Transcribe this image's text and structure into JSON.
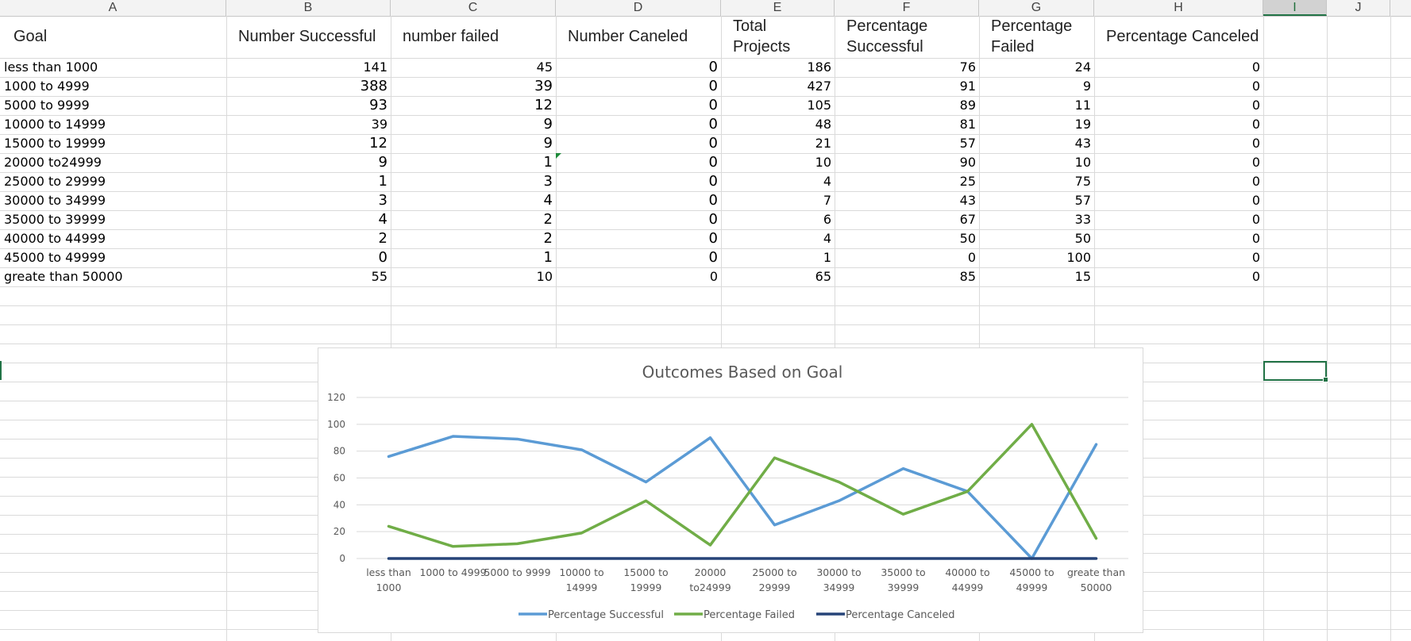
{
  "columns": [
    "A",
    "B",
    "C",
    "D",
    "E",
    "F",
    "G",
    "H",
    "I",
    "J"
  ],
  "selected_column": "I",
  "headers": {
    "a": "Goal",
    "b": "Number Successful",
    "c": "number failed",
    "d": "Number Caneled",
    "e1": "Total",
    "e2": "Projects",
    "f1": "Percentage",
    "f2": "Successful",
    "g1": "Percentage",
    "g2": "Failed",
    "h": "Percentage Canceled"
  },
  "rows": [
    {
      "goal": "less than 1000",
      "succ": "141",
      "fail": "45",
      "canc": "0",
      "total": "186",
      "pct_s": "76",
      "pct_f": "24",
      "pct_c": "0"
    },
    {
      "goal": "1000 to 4999",
      "succ": "388",
      "fail": "39",
      "canc": "0",
      "total": "427",
      "pct_s": "91",
      "pct_f": "9",
      "pct_c": "0"
    },
    {
      "goal": "5000 to 9999",
      "succ": "93",
      "fail": "12",
      "canc": "0",
      "total": "105",
      "pct_s": "89",
      "pct_f": "11",
      "pct_c": "0"
    },
    {
      "goal": "10000 to 14999",
      "succ": "39",
      "fail": "9",
      "canc": "0",
      "total": "48",
      "pct_s": "81",
      "pct_f": "19",
      "pct_c": "0"
    },
    {
      "goal": "15000 to 19999",
      "succ": "12",
      "fail": "9",
      "canc": "0",
      "total": "21",
      "pct_s": "57",
      "pct_f": "43",
      "pct_c": "0"
    },
    {
      "goal": "20000 to24999",
      "succ": "9",
      "fail": "1",
      "canc": "0",
      "total": "10",
      "pct_s": "90",
      "pct_f": "10",
      "pct_c": "0"
    },
    {
      "goal": "25000 to 29999",
      "succ": "1",
      "fail": "3",
      "canc": "0",
      "total": "4",
      "pct_s": "25",
      "pct_f": "75",
      "pct_c": "0"
    },
    {
      "goal": "30000 to 34999",
      "succ": "3",
      "fail": "4",
      "canc": "0",
      "total": "7",
      "pct_s": "43",
      "pct_f": "57",
      "pct_c": "0"
    },
    {
      "goal": "35000 to 39999",
      "succ": "4",
      "fail": "2",
      "canc": "0",
      "total": "6",
      "pct_s": "67",
      "pct_f": "33",
      "pct_c": "0"
    },
    {
      "goal": "40000 to 44999",
      "succ": "2",
      "fail": "2",
      "canc": "0",
      "total": "4",
      "pct_s": "50",
      "pct_f": "50",
      "pct_c": "0"
    },
    {
      "goal": "45000 to 49999",
      "succ": "0",
      "fail": "1",
      "canc": "0",
      "total": "1",
      "pct_s": "0",
      "pct_f": "100",
      "pct_c": "0"
    },
    {
      "goal": "greate than 50000",
      "succ": "55",
      "fail": "10",
      "canc": "0",
      "total": "65",
      "pct_s": "85",
      "pct_f": "15",
      "pct_c": "0"
    }
  ],
  "chart_data": {
    "type": "line",
    "title": "Outcomes Based on Goal",
    "categories": [
      "less than 1000",
      "1000 to 4999",
      "5000 to 9999",
      "10000 to 14999",
      "15000 to 19999",
      "20000 to24999",
      "25000 to 29999",
      "30000 to 34999",
      "35000 to 39999",
      "40000 to 44999",
      "45000 to 49999",
      "greate than 50000"
    ],
    "category_labels": [
      [
        "less than",
        "1000"
      ],
      [
        "1000 to 4999"
      ],
      [
        "5000 to 9999"
      ],
      [
        "10000 to",
        "14999"
      ],
      [
        "15000 to",
        "19999"
      ],
      [
        "20000",
        "to24999"
      ],
      [
        "25000 to",
        "29999"
      ],
      [
        "30000 to",
        "34999"
      ],
      [
        "35000 to",
        "39999"
      ],
      [
        "40000 to",
        "44999"
      ],
      [
        "45000 to",
        "49999"
      ],
      [
        "greate than",
        "50000"
      ]
    ],
    "series": [
      {
        "name": "Percentage Successful",
        "color": "#5b9bd5",
        "values": [
          76,
          91,
          89,
          81,
          57,
          90,
          25,
          43,
          67,
          50,
          0,
          85
        ]
      },
      {
        "name": "Percentage Failed",
        "color": "#70ad47",
        "values": [
          24,
          9,
          11,
          19,
          43,
          10,
          75,
          57,
          33,
          50,
          100,
          15
        ]
      },
      {
        "name": "Percentage Canceled",
        "color": "#264478",
        "values": [
          0,
          0,
          0,
          0,
          0,
          0,
          0,
          0,
          0,
          0,
          0,
          0
        ]
      }
    ],
    "ylim": [
      0,
      120
    ],
    "yticks": [
      "0",
      "20",
      "40",
      "60",
      "80",
      "100",
      "120"
    ],
    "grid": true,
    "legend": "bottom"
  }
}
